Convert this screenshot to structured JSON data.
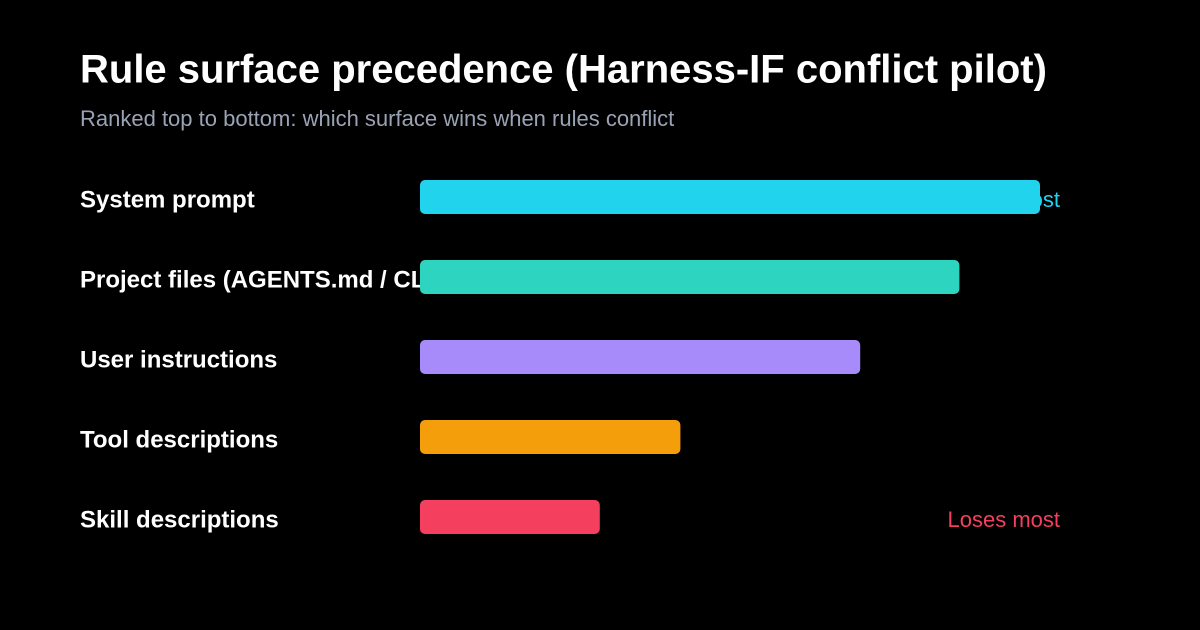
{
  "chart_data": {
    "type": "hbar",
    "title": "Rule surface precedence (Harness-IF conflict pilot)",
    "subtitle": "Ranked top to bottom: which surface wins when rules conflict",
    "categories": [
      "System prompt",
      "Project files (AGENTS.md / CLAUDE.md)",
      "User instructions",
      "Tool descriptions",
      "Skill descriptions"
    ],
    "values": [
      100,
      87,
      71,
      42,
      29
    ],
    "colors": [
      "#22d3ee",
      "#2dd4bf",
      "#a78bfa",
      "#f59e0b",
      "#f43f5e"
    ],
    "xlim": [
      0,
      100
    ],
    "annotations": [
      {
        "text": "Wins most",
        "color": "#22d3ee"
      },
      {
        "text": "Loses most",
        "color": "#f43f5e"
      }
    ]
  }
}
